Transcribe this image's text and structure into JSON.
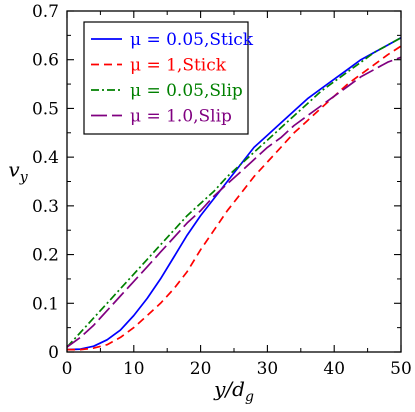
{
  "chart_data": {
    "type": "line",
    "xlabel": "y/d",
    "xlabel_sub": "g",
    "ylabel": "v",
    "ylabel_sub": "y",
    "xlim": [
      0,
      50
    ],
    "ylim": [
      0,
      0.7
    ],
    "xticks": [
      0,
      10,
      20,
      30,
      40,
      50
    ],
    "yticks": [
      0,
      0.1,
      0.2,
      0.3,
      0.4,
      0.5,
      0.6,
      0.7
    ],
    "ytick_labels": [
      "0",
      "0.1",
      "0.2",
      "0.3",
      "0.4",
      "0.5",
      "0.6",
      "0.7"
    ],
    "grid": false,
    "legend_position": "top-left",
    "series": [
      {
        "name": "μ = 0.05,Stick",
        "color": "#0000ff",
        "dash": "solid",
        "x": [
          0,
          2,
          4,
          6,
          8,
          10,
          12,
          14,
          16,
          18,
          20,
          22,
          24,
          26,
          28,
          30,
          32,
          34,
          36,
          38,
          40,
          42,
          44,
          46,
          48,
          50
        ],
        "y": [
          0.005,
          0.006,
          0.012,
          0.025,
          0.045,
          0.075,
          0.11,
          0.15,
          0.195,
          0.24,
          0.28,
          0.315,
          0.35,
          0.385,
          0.42,
          0.445,
          0.47,
          0.495,
          0.52,
          0.54,
          0.56,
          0.58,
          0.6,
          0.615,
          0.63,
          0.645
        ]
      },
      {
        "name": "μ = 1,Stick",
        "color": "#ff0000",
        "dash": "dashed",
        "x": [
          0,
          2,
          4,
          6,
          8,
          10,
          12,
          14,
          16,
          18,
          20,
          22,
          24,
          26,
          28,
          30,
          32,
          34,
          36,
          38,
          40,
          42,
          44,
          46,
          48,
          50
        ],
        "y": [
          0.005,
          0.005,
          0.008,
          0.015,
          0.03,
          0.05,
          0.075,
          0.1,
          0.13,
          0.165,
          0.21,
          0.25,
          0.29,
          0.325,
          0.36,
          0.39,
          0.42,
          0.45,
          0.475,
          0.5,
          0.525,
          0.55,
          0.57,
          0.59,
          0.61,
          0.628
        ]
      },
      {
        "name": "μ = 0.05,Slip",
        "color": "#008000",
        "dash": "dashdot",
        "x": [
          0,
          2,
          4,
          6,
          8,
          10,
          12,
          14,
          16,
          18,
          20,
          22,
          24,
          26,
          28,
          30,
          32,
          34,
          36,
          38,
          40,
          42,
          44,
          46,
          48,
          50
        ],
        "y": [
          0.01,
          0.04,
          0.07,
          0.1,
          0.13,
          0.16,
          0.19,
          0.22,
          0.25,
          0.28,
          0.305,
          0.33,
          0.36,
          0.385,
          0.41,
          0.435,
          0.46,
          0.485,
          0.51,
          0.535,
          0.555,
          0.575,
          0.595,
          0.615,
          0.63,
          0.645
        ]
      },
      {
        "name": "μ = 1.0,Slip",
        "color": "#800080",
        "dash": "longdash",
        "x": [
          0,
          2,
          4,
          6,
          8,
          10,
          12,
          14,
          16,
          18,
          20,
          22,
          24,
          26,
          28,
          30,
          32,
          34,
          36,
          38,
          40,
          42,
          44,
          46,
          48,
          50
        ],
        "y": [
          0.01,
          0.03,
          0.055,
          0.085,
          0.115,
          0.145,
          0.175,
          0.205,
          0.235,
          0.265,
          0.29,
          0.32,
          0.345,
          0.37,
          0.395,
          0.42,
          0.44,
          0.465,
          0.485,
          0.505,
          0.525,
          0.545,
          0.565,
          0.58,
          0.595,
          0.605
        ]
      }
    ]
  }
}
